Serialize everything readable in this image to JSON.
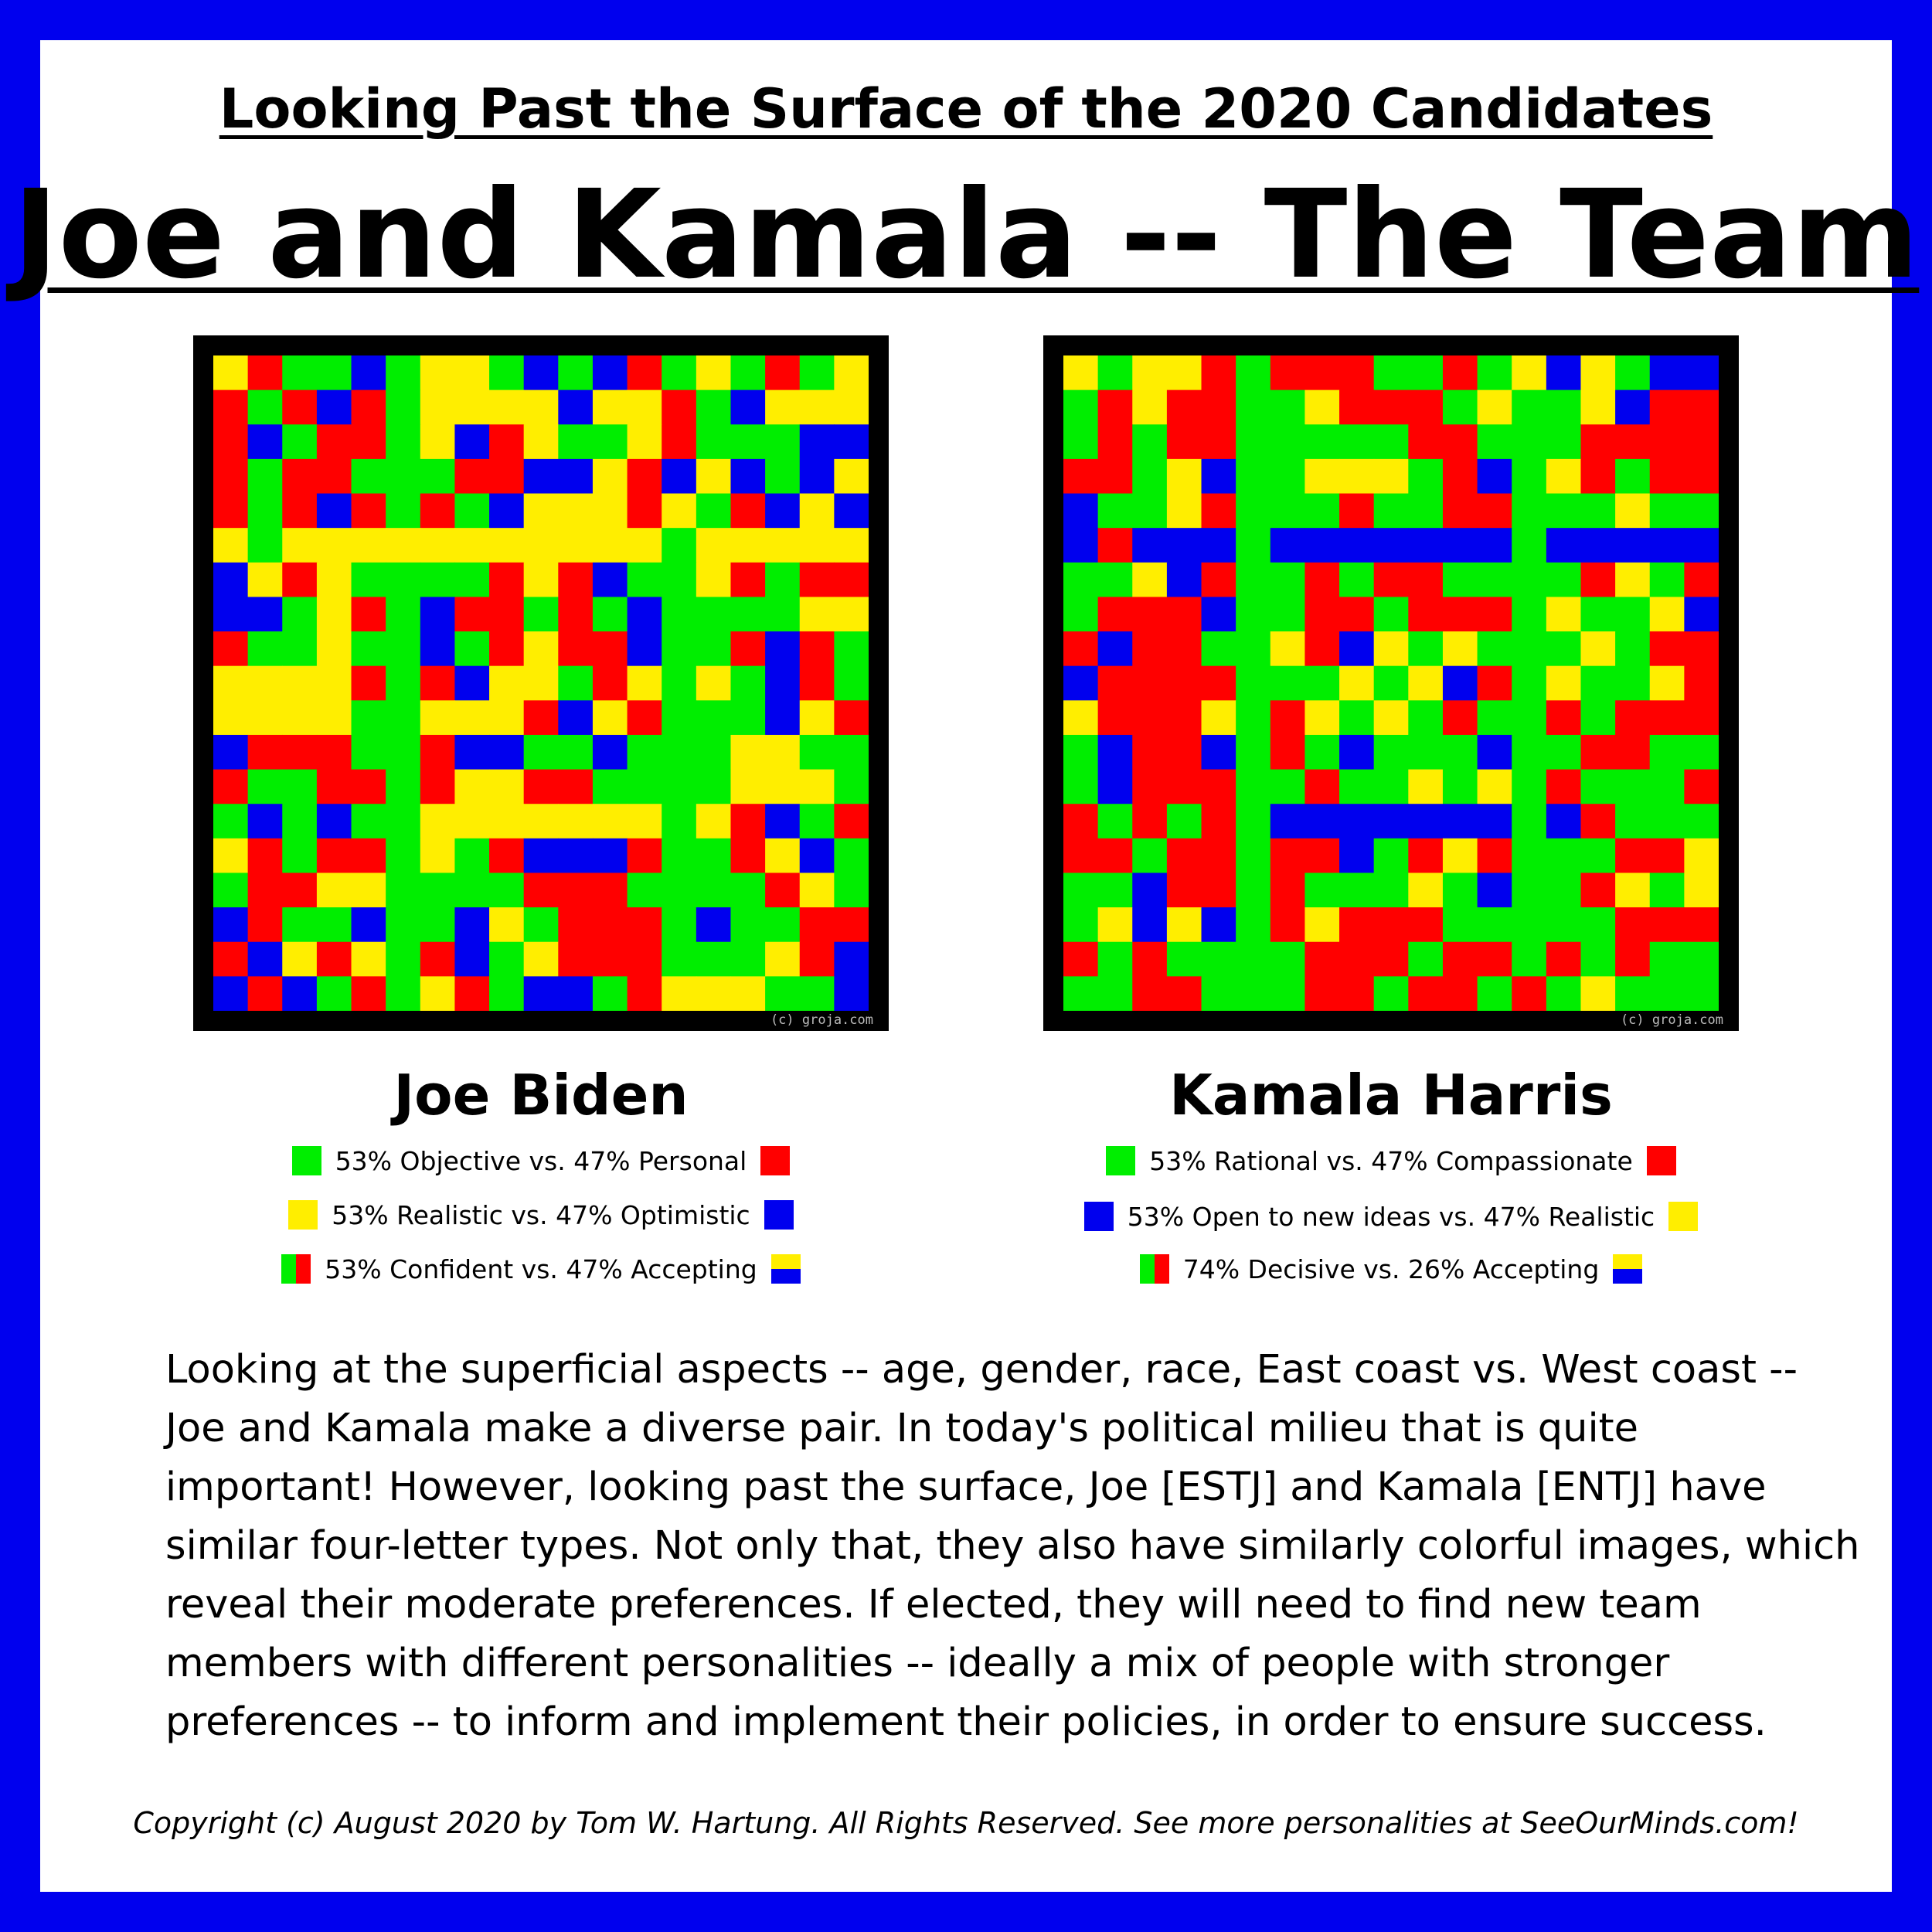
{
  "header": {
    "supertitle": "Looking Past the Surface of the 2020 Candidates",
    "title": "Joe and Kamala -- The Team"
  },
  "colors": {
    "frame": "#0000ee",
    "green": "#00ee00",
    "red": "#ff0000",
    "yellow": "#ffee00",
    "blue": "#0000ee"
  },
  "candidates": [
    {
      "name": "Joe Biden",
      "image_credit": "(c) groja.com",
      "legend": [
        {
          "text": "53% Objective vs. 47% Personal",
          "left_swatch": "green",
          "right_swatch": "red"
        },
        {
          "text": "53% Realistic vs. 47% Optimistic",
          "left_swatch": "yellow",
          "right_swatch": "blue"
        },
        {
          "text": "53% Confident vs. 47% Accepting",
          "left_swatch": "green-red",
          "right_swatch": "yellow-blue"
        }
      ]
    },
    {
      "name": "Kamala Harris",
      "image_credit": "(c) groja.com",
      "legend": [
        {
          "text": "53% Rational vs. 47% Compassionate",
          "left_swatch": "green",
          "right_swatch": "red"
        },
        {
          "text": "53% Open to new ideas vs. 47% Realistic",
          "left_swatch": "blue",
          "right_swatch": "yellow"
        },
        {
          "text": "74% Decisive vs. 26% Accepting",
          "left_swatch": "green-red",
          "right_swatch": "yellow-blue"
        }
      ]
    }
  ],
  "body": [
    "Looking at the superficial aspects -- age, gender, race, East coast vs. West coast --",
    "Joe and Kamala make a diverse pair.  In today's political milieu that is quite",
    "important!  However, looking past the surface, Joe [ESTJ] and Kamala [ENTJ] have",
    "similar four-letter types. Not only that, they also have similarly colorful images, which",
    "reveal their moderate preferences.  If elected, they will  need to find new team",
    "members with different personalities -- ideally a mix of people with stronger",
    "preferences -- to inform and implement their policies, in order to ensure success."
  ],
  "copyright": "Copyright (c) August 2020 by Tom W. Hartung.  All Rights Reserved.  See more personalities at SeeOurMinds.com!"
}
